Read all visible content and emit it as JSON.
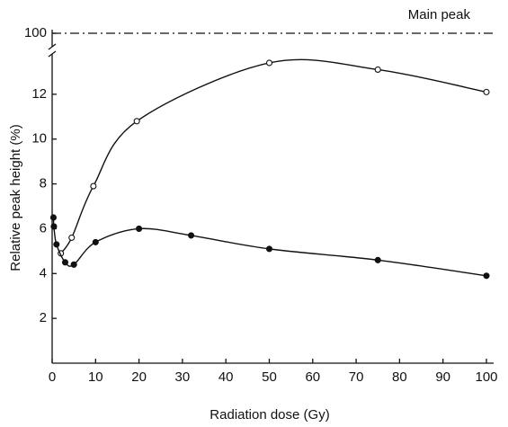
{
  "chart_data": {
    "type": "line",
    "x_label": "Radiation dose (Gy)",
    "y_label": "Relative peak height (%)",
    "xlim": [
      0,
      100
    ],
    "xticks": [
      0,
      10,
      20,
      30,
      40,
      50,
      60,
      70,
      80,
      90,
      100
    ],
    "ylim": [
      0,
      13.8
    ],
    "yticks": [
      2,
      4,
      6,
      8,
      10,
      12
    ],
    "axis_break": true,
    "reference_line": {
      "label": "Main peak",
      "value": 100,
      "tick": 100
    },
    "series": [
      {
        "marker": "open",
        "color": "#111111",
        "x": [
          2,
          4.5,
          9.5,
          19.5,
          50,
          75,
          100
        ],
        "values": [
          4.9,
          5.6,
          7.9,
          10.8,
          13.4,
          13.1,
          12.1
        ]
      },
      {
        "marker": "filled",
        "color": "#111111",
        "x": [
          0.3,
          0.4,
          1,
          3,
          5,
          10,
          20,
          32,
          50,
          75,
          100
        ],
        "values": [
          6.5,
          6.1,
          5.3,
          4.5,
          4.4,
          5.4,
          6.0,
          5.7,
          5.1,
          4.6,
          3.9
        ]
      }
    ]
  }
}
